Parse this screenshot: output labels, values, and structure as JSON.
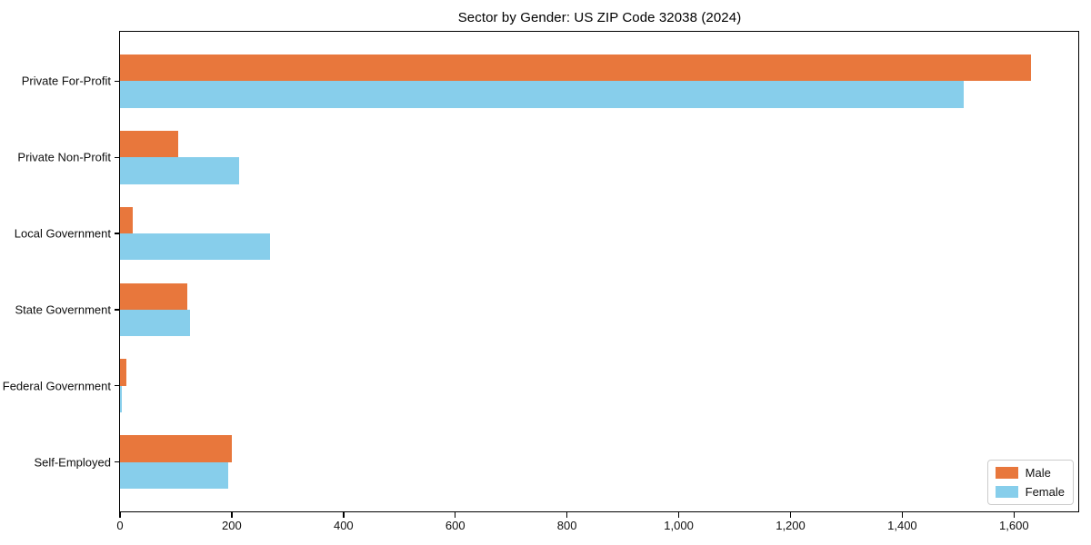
{
  "chart_data": {
    "type": "bar",
    "orientation": "horizontal",
    "title": "Sector by Gender: US ZIP Code 32038 (2024)",
    "categories": [
      "Private For-Profit",
      "Private Non-Profit",
      "Local Government",
      "State Government",
      "Federal Government",
      "Self-Employed"
    ],
    "series": [
      {
        "name": "Male",
        "color": "#e8773c",
        "values": [
          1630,
          104,
          23,
          120,
          11,
          200
        ]
      },
      {
        "name": "Female",
        "color": "#87ceeb",
        "values": [
          1510,
          213,
          268,
          125,
          3,
          193
        ]
      }
    ],
    "xlabel": "",
    "ylabel": "",
    "xlim": [
      0,
      1715
    ],
    "x_ticks": [
      {
        "value": 0,
        "label": "0"
      },
      {
        "value": 200,
        "label": "200"
      },
      {
        "value": 400,
        "label": "400"
      },
      {
        "value": 600,
        "label": "600"
      },
      {
        "value": 800,
        "label": "800"
      },
      {
        "value": 1000,
        "label": "1,000"
      },
      {
        "value": 1200,
        "label": "1,200"
      },
      {
        "value": 1400,
        "label": "1,400"
      },
      {
        "value": 1600,
        "label": "1,600"
      }
    ],
    "grid": false,
    "legend_position": "lower-right",
    "axis_color": "#000000",
    "background_color": "#ffffff"
  }
}
